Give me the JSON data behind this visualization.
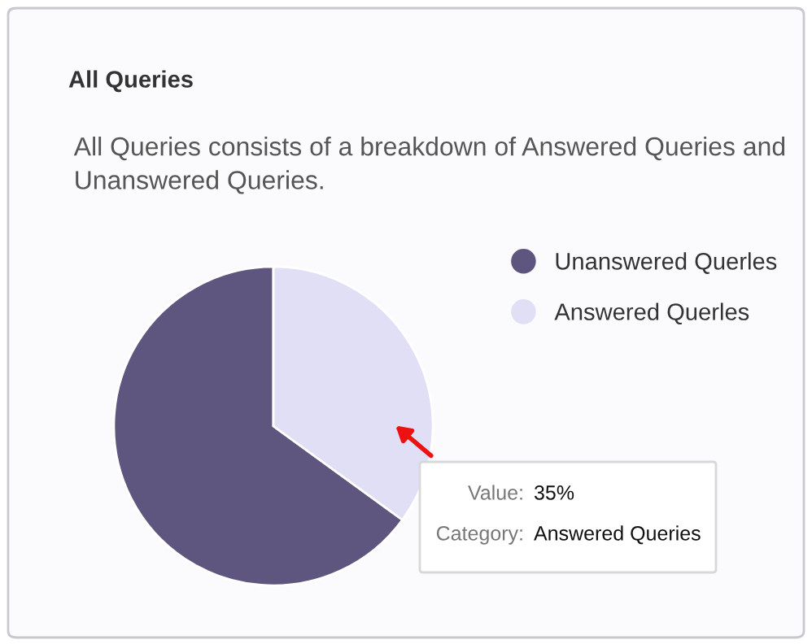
{
  "chart_data": {
    "type": "pie",
    "title": "All Queries",
    "subtitle": "All Queries consists of a breakdown of Answered Queries and Unanswered Queries.",
    "categories": [
      "Unanswered Querles",
      "Answered Querles"
    ],
    "values": [
      65,
      35
    ],
    "colors": [
      "#5e567e",
      "#e0dff5"
    ],
    "legend": "top right",
    "annotations": [
      "Value:",
      "35%",
      "Category:",
      "Answered Queries"
    ]
  }
}
